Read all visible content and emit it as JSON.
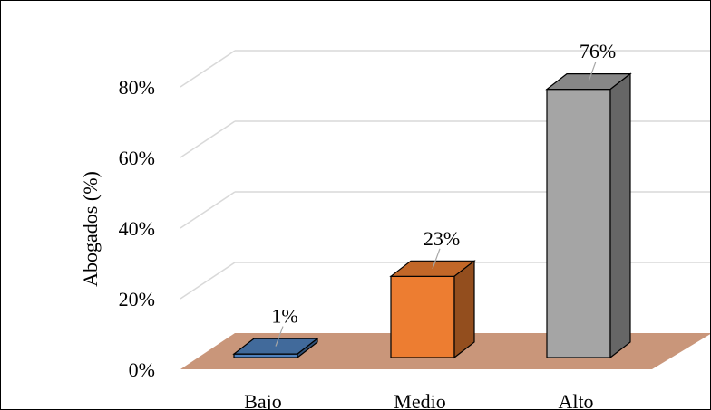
{
  "chart_data": {
    "type": "bar",
    "title": "",
    "xlabel": "",
    "ylabel": "Abogados (%)",
    "categories": [
      "Bajo",
      "Medio",
      "Alto"
    ],
    "values": [
      1,
      23,
      76
    ],
    "data_labels": [
      "1%",
      "23%",
      "76%"
    ],
    "y_ticks": [
      "0%",
      "20%",
      "40%",
      "60%",
      "80%"
    ],
    "y_tick_values": [
      0,
      20,
      40,
      60,
      80
    ],
    "ylim": [
      0,
      90
    ],
    "grid": true,
    "legend": "none",
    "style": "3d-column",
    "colors": {
      "bars": [
        "#4f81bd",
        "#ed7d31",
        "#a5a5a5"
      ],
      "floor": "#c9967a",
      "grid": "#d9d9d9"
    }
  }
}
